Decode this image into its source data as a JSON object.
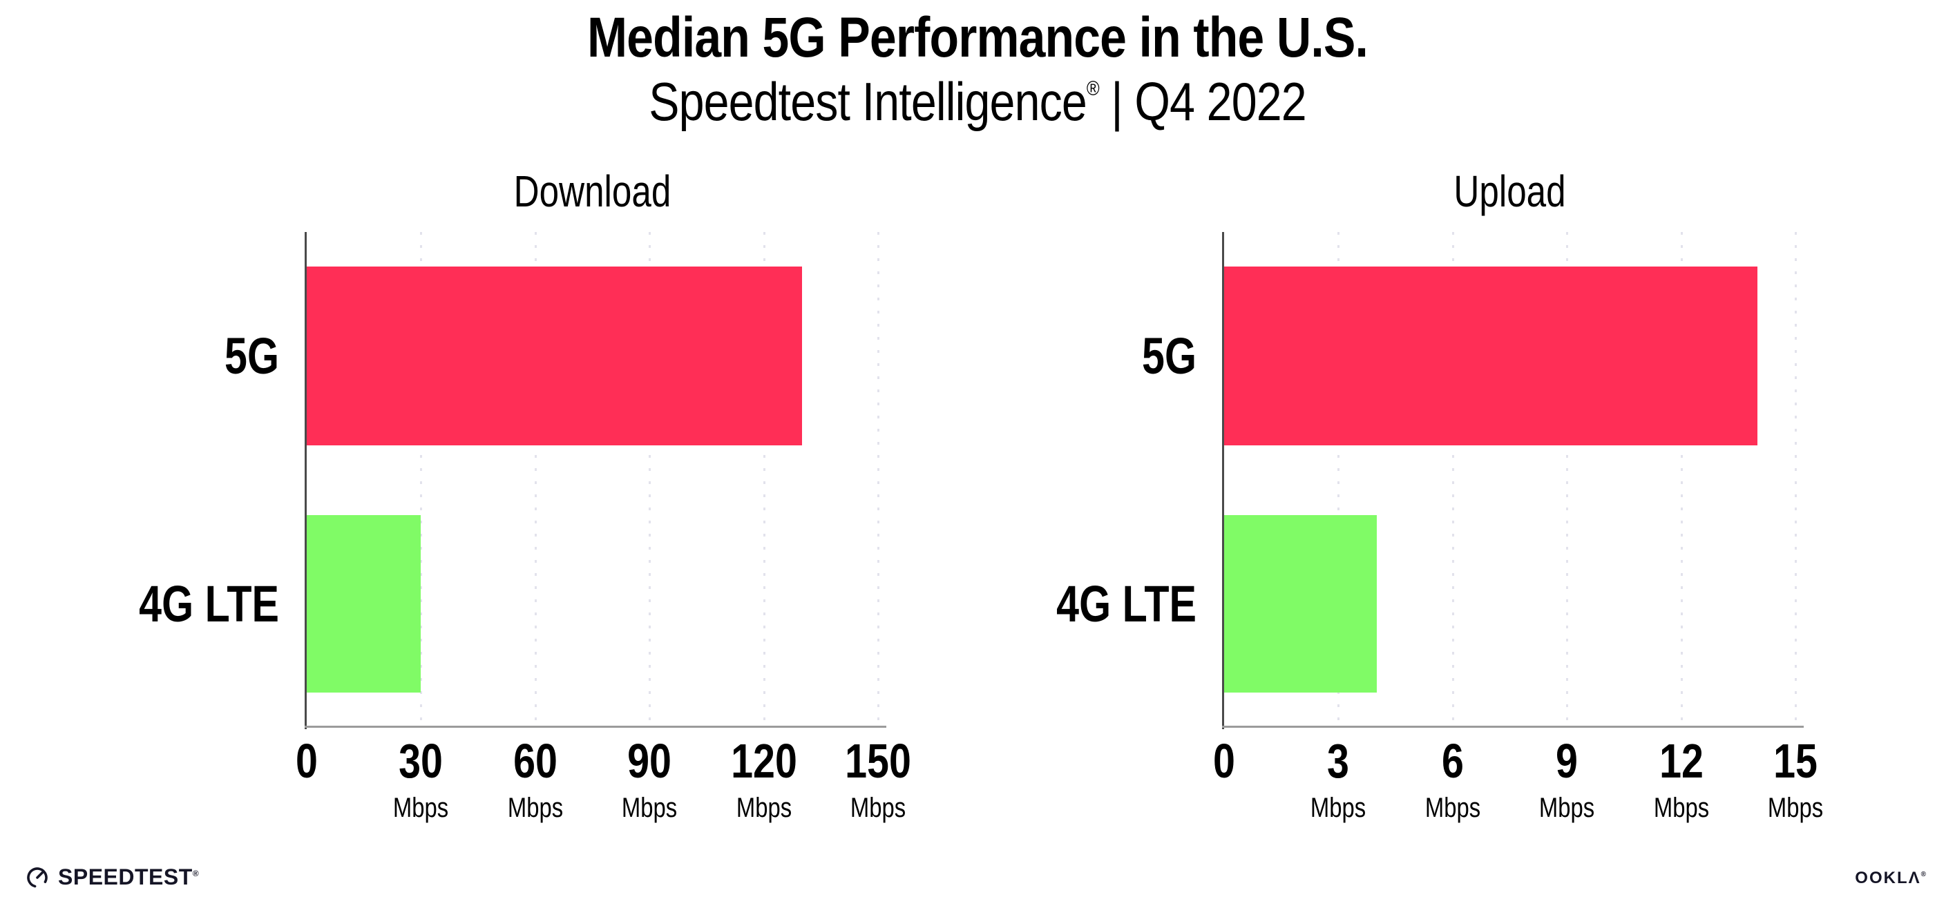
{
  "header": {
    "title": "Median 5G Performance in the U.S.",
    "subtitle_brand": "Speedtest Intelligence",
    "subtitle_reg": "®",
    "subtitle_rest": " | Q4 2022"
  },
  "colors": {
    "bar_5g": "#FF2E56",
    "bar_4g_lte": "#80FB66",
    "gridline": "#E2E2EC",
    "x_axis": "#9B9B9B",
    "y_axis": "#4A4A4A",
    "text": "#000000",
    "logo": "#151526"
  },
  "chart_data": [
    {
      "type": "bar",
      "orientation": "horizontal",
      "title": "Download",
      "categories": [
        "5G",
        "4G LTE"
      ],
      "values": [
        130,
        30
      ],
      "unit": "Mbps",
      "xlim": [
        0,
        150
      ],
      "xticks": [
        0,
        30,
        60,
        90,
        120,
        150
      ],
      "tick_unit_label": "Mbps",
      "grid": "vertical dotted gridlines at each tick except 0",
      "legend": "none",
      "bar_colors": [
        "#FF2E56",
        "#80FB66"
      ]
    },
    {
      "type": "bar",
      "orientation": "horizontal",
      "title": "Upload",
      "categories": [
        "5G",
        "4G LTE"
      ],
      "values": [
        14,
        4
      ],
      "unit": "Mbps",
      "xlim": [
        0,
        15
      ],
      "xticks": [
        0,
        3,
        6,
        9,
        12,
        15
      ],
      "tick_unit_label": "Mbps",
      "grid": "vertical dotted gridlines at each tick except 0",
      "legend": "none",
      "bar_colors": [
        "#FF2E56",
        "#80FB66"
      ]
    }
  ],
  "footer": {
    "speedtest_label": "SPEEDTEST",
    "speedtest_reg": "®",
    "ookla_label": "OOKLΛ",
    "ookla_reg": "®"
  }
}
